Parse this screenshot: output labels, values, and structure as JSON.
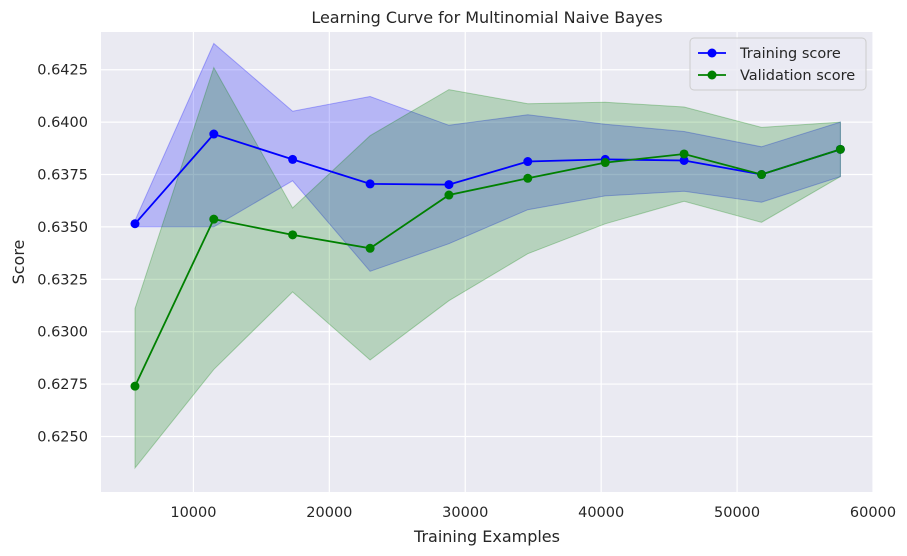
{
  "chart_data": {
    "type": "line",
    "title": "Learning Curve for Multinomial Naive Bayes",
    "xlabel": "Training Examples",
    "ylabel": "Score",
    "xlim": [
      3200,
      60000
    ],
    "ylim": [
      0.62235,
      0.6443
    ],
    "xticks": [
      10000,
      20000,
      30000,
      40000,
      50000,
      60000
    ],
    "xtick_labels": [
      "10000",
      "20000",
      "30000",
      "40000",
      "50000",
      "60000"
    ],
    "yticks": [
      0.625,
      0.6275,
      0.63,
      0.6325,
      0.635,
      0.6375,
      0.64,
      0.6425
    ],
    "ytick_labels": [
      "0.6250",
      "0.6275",
      "0.6300",
      "0.6325",
      "0.6350",
      "0.6375",
      "0.6400",
      "0.6425"
    ],
    "grid": true,
    "background": "#eaeaf2",
    "legend_position": "top-right",
    "x": [
      5700,
      11500,
      17300,
      23000,
      28800,
      34600,
      40300,
      46100,
      51800,
      57600
    ],
    "series": [
      {
        "name": "Training score",
        "color": "#0000ff",
        "fill_color": "#0000ff",
        "values": [
          0.63515,
          0.63943,
          0.63822,
          0.63705,
          0.63702,
          0.63812,
          0.63822,
          0.63817,
          0.6375,
          0.6387
        ],
        "upper": [
          0.6353,
          0.64375,
          0.64052,
          0.64122,
          0.63985,
          0.64035,
          0.6399,
          0.63955,
          0.63882,
          0.64
        ],
        "lower": [
          0.635,
          0.635,
          0.6372,
          0.63288,
          0.6342,
          0.63582,
          0.63648,
          0.6367,
          0.63618,
          0.6374
        ]
      },
      {
        "name": "Validation score",
        "color": "#008000",
        "fill_color": "#008000",
        "values": [
          0.6274,
          0.63537,
          0.63462,
          0.63398,
          0.63652,
          0.63732,
          0.63807,
          0.63848,
          0.6375,
          0.6387
        ],
        "upper": [
          0.6311,
          0.6426,
          0.6359,
          0.63935,
          0.64155,
          0.64088,
          0.64095,
          0.64072,
          0.63975,
          0.64
        ],
        "lower": [
          0.6235,
          0.6282,
          0.6319,
          0.62865,
          0.63148,
          0.63372,
          0.63515,
          0.63622,
          0.63522,
          0.6374
        ]
      }
    ]
  }
}
